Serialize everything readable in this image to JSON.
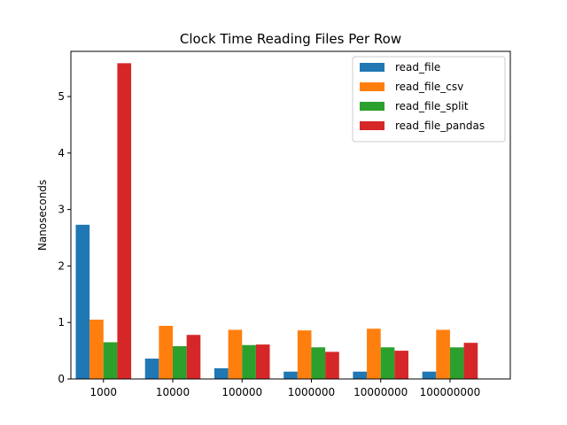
{
  "chart_data": {
    "type": "bar",
    "title": "Clock Time Reading Files Per Row",
    "xlabel": "",
    "ylabel": "Nanoseconds",
    "categories": [
      "1000",
      "10000",
      "100000",
      "1000000",
      "10000000",
      "100000000"
    ],
    "series": [
      {
        "name": "read_file",
        "color": "#1f77b4",
        "values": [
          2.73,
          0.36,
          0.19,
          0.13,
          0.13,
          0.13
        ]
      },
      {
        "name": "read_file_csv",
        "color": "#ff7f0e",
        "values": [
          1.05,
          0.94,
          0.87,
          0.86,
          0.89,
          0.87
        ]
      },
      {
        "name": "read_file_split",
        "color": "#2ca02c",
        "values": [
          0.65,
          0.58,
          0.6,
          0.56,
          0.56,
          0.56
        ]
      },
      {
        "name": "read_file_pandas",
        "color": "#d62728",
        "values": [
          5.59,
          0.78,
          0.61,
          0.48,
          0.5,
          0.64
        ]
      }
    ],
    "ylim": [
      0,
      5.8
    ],
    "yticks": [
      0,
      1,
      2,
      3,
      4,
      5
    ],
    "grid": false,
    "legend_position": "top-right"
  }
}
